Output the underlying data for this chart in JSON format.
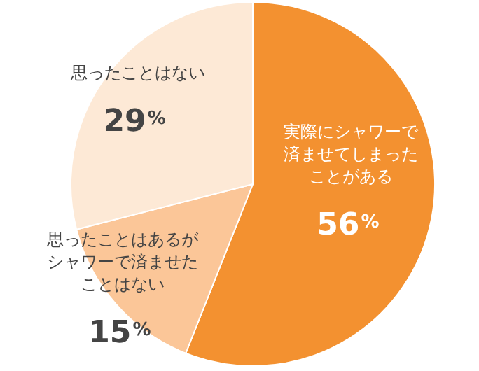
{
  "chart_data": {
    "type": "pie",
    "categories": [
      "実際にシャワーで済ませてしまったことがある",
      "思ったことはあるがシャワーで済ませたことはない",
      "思ったことはない"
    ],
    "values": [
      56,
      15,
      29
    ],
    "value_labels": [
      "56%",
      "15%",
      "29%"
    ],
    "colors": [
      "#f39130",
      "#fbc698",
      "#fde9d6"
    ]
  }
}
